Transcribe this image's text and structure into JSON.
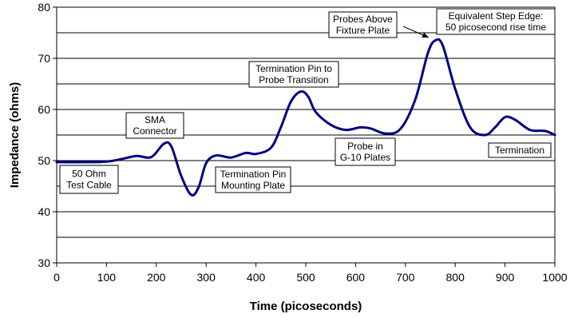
{
  "chart_data": {
    "type": "line",
    "title": "",
    "xlabel": "Time (picoseconds)",
    "ylabel": "Impedance (ohms)",
    "xlim": [
      0,
      1000
    ],
    "ylim": [
      30,
      80
    ],
    "x_ticks": [
      0,
      100,
      200,
      300,
      400,
      500,
      600,
      700,
      800,
      900,
      1000
    ],
    "y_ticks": [
      30,
      40,
      50,
      60,
      70,
      80
    ],
    "y_grid": [
      35,
      40,
      45,
      50,
      55,
      60,
      65,
      70,
      75,
      80
    ],
    "grid": true,
    "line_color": "#000080",
    "series": [
      {
        "x": [
          0,
          50,
          100,
          130,
          160,
          190,
          215,
          230,
          250,
          270,
          285,
          300,
          320,
          350,
          380,
          400,
          430,
          450,
          470,
          490,
          505,
          520,
          550,
          580,
          610,
          630,
          660,
          690,
          720,
          745,
          760,
          775,
          800,
          830,
          860,
          880,
          900,
          920,
          950,
          980,
          1000
        ],
        "y": [
          49.7,
          49.7,
          49.8,
          50.3,
          50.9,
          50.7,
          53.3,
          52.8,
          47.0,
          43.3,
          44.8,
          49.5,
          51.0,
          50.6,
          51.5,
          51.3,
          52.5,
          56.5,
          61.5,
          63.5,
          62.5,
          59.5,
          57.0,
          56.0,
          56.5,
          56.3,
          55.3,
          56.2,
          62.0,
          71.0,
          73.5,
          72.5,
          64.0,
          56.5,
          55.0,
          56.5,
          58.5,
          58.0,
          56.0,
          55.8,
          55.0
        ]
      }
    ],
    "annotations": [
      {
        "lines": [
          "50 Ohm",
          "Test Cable"
        ]
      },
      {
        "lines": [
          "SMA",
          "Connector"
        ]
      },
      {
        "lines": [
          "Termination Pin",
          "Mounting Plate"
        ]
      },
      {
        "lines": [
          "Termination Pin to",
          "Probe Transition"
        ]
      },
      {
        "lines": [
          "Probe in",
          "G-10 Plates"
        ]
      },
      {
        "lines": [
          "Probes Above",
          "Fixture Plate"
        ]
      },
      {
        "lines": [
          "Equivalent Step Edge:",
          "50 picosecond rise time"
        ]
      },
      {
        "lines": [
          "Termination"
        ]
      }
    ]
  }
}
